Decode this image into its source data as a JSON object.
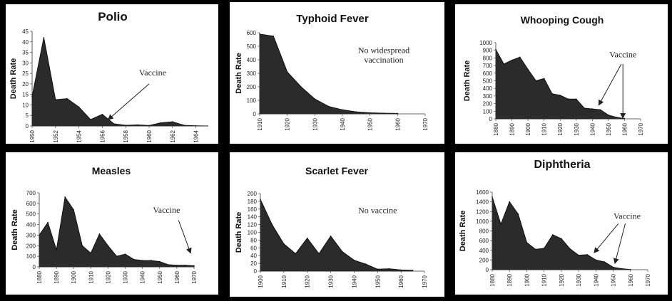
{
  "chart_data": [
    {
      "type": "area",
      "title": "Polio",
      "ylabel": "Death Rate",
      "xlabel": "",
      "xlim": [
        1950,
        1965
      ],
      "ylim": [
        0,
        45
      ],
      "xticks": [
        1950,
        1952,
        1954,
        1956,
        1958,
        1960,
        1962,
        1964
      ],
      "yticks": [
        0,
        5,
        10,
        15,
        20,
        25,
        30,
        35,
        40,
        45
      ],
      "x": [
        1950,
        1951,
        1952,
        1953,
        1954,
        1955,
        1956,
        1957,
        1958,
        1959,
        1960,
        1961,
        1962,
        1963,
        1964,
        1965
      ],
      "values": [
        14,
        42,
        12.5,
        13,
        9,
        3,
        5.5,
        1,
        0.3,
        0.5,
        0.2,
        1.5,
        2,
        0.3,
        0.1,
        0
      ],
      "annotations": [
        {
          "text": "Vaccine",
          "text_x": 1960.3,
          "text_y": 24,
          "arrows": [
            {
              "from": [
                1960,
                20
              ],
              "to": [
                1956.5,
                3
              ]
            }
          ]
        }
      ]
    },
    {
      "type": "area",
      "title": "Typhoid Fever",
      "ylabel": "Death Rate",
      "xlabel": "",
      "xlim": [
        1910,
        1970
      ],
      "ylim": [
        0,
        600
      ],
      "xticks": [
        1910,
        1920,
        1930,
        1940,
        1950,
        1960,
        1970
      ],
      "yticks": [
        0,
        100,
        200,
        300,
        400,
        500,
        600
      ],
      "x": [
        1910,
        1915,
        1920,
        1925,
        1930,
        1935,
        1940,
        1945,
        1950,
        1955,
        1960
      ],
      "values": [
        590,
        575,
        310,
        200,
        110,
        55,
        30,
        15,
        8,
        5,
        3
      ],
      "annotations": [
        {
          "text": "No widespread",
          "text_x": 1955,
          "text_y": 450,
          "arrows": []
        },
        {
          "text": "vaccination",
          "text_x": 1955,
          "text_y": 380,
          "arrows": []
        }
      ]
    },
    {
      "type": "area",
      "title": "Whooping Cough",
      "ylabel": "Death Rate",
      "xlabel": "",
      "xlim": [
        1880,
        1970
      ],
      "ylim": [
        0,
        1000
      ],
      "xticks": [
        1880,
        1890,
        1900,
        1910,
        1920,
        1930,
        1940,
        1950,
        1960,
        1970
      ],
      "yticks": [
        0,
        100,
        200,
        300,
        400,
        500,
        600,
        700,
        800,
        900,
        1000
      ],
      "x": [
        1880,
        1885,
        1890,
        1895,
        1900,
        1905,
        1910,
        1915,
        1920,
        1925,
        1930,
        1935,
        1940,
        1945,
        1950,
        1955,
        1960
      ],
      "values": [
        910,
        720,
        770,
        810,
        650,
        500,
        530,
        330,
        310,
        260,
        260,
        140,
        130,
        120,
        50,
        20,
        5
      ],
      "annotations": [
        {
          "text": "Vaccine",
          "text_x": 1959,
          "text_y": 810,
          "arrows": [
            {
              "from": [
                1958,
                720
              ],
              "to": [
                1944,
                180
              ]
            },
            {
              "from": [
                1959,
                720
              ],
              "to": [
                1959,
                10
              ]
            }
          ]
        }
      ]
    },
    {
      "type": "area",
      "title": "Measles",
      "ylabel": "Death Rate",
      "xlabel": "",
      "xlim": [
        1880,
        1970
      ],
      "ylim": [
        0,
        700
      ],
      "xticks": [
        1880,
        1890,
        1900,
        1910,
        1920,
        1930,
        1940,
        1950,
        1960,
        1970
      ],
      "yticks": [
        0,
        100,
        200,
        300,
        400,
        500,
        600,
        700
      ],
      "x": [
        1880,
        1885,
        1890,
        1895,
        1900,
        1905,
        1910,
        1915,
        1920,
        1925,
        1930,
        1935,
        1940,
        1945,
        1950,
        1955,
        1960,
        1965,
        1970
      ],
      "values": [
        300,
        420,
        160,
        660,
        540,
        200,
        130,
        310,
        200,
        100,
        120,
        70,
        60,
        60,
        50,
        20,
        15,
        15,
        10
      ],
      "annotations": [
        {
          "text": "Vaccine",
          "text_x": 1954,
          "text_y": 510,
          "arrows": [
            {
              "from": [
                1961,
                440
              ],
              "to": [
                1968,
                130
              ]
            }
          ]
        }
      ]
    },
    {
      "type": "area",
      "title": "Scarlet Fever",
      "ylabel": "Death Rate",
      "xlabel": "",
      "xlim": [
        1900,
        1970
      ],
      "ylim": [
        0,
        200
      ],
      "xticks": [
        1900,
        1910,
        1920,
        1930,
        1940,
        1950,
        1960,
        1970
      ],
      "yticks": [
        0,
        20,
        40,
        60,
        80,
        100,
        120,
        140,
        160,
        180,
        200
      ],
      "x": [
        1900,
        1905,
        1910,
        1915,
        1920,
        1925,
        1930,
        1935,
        1940,
        1945,
        1950,
        1955,
        1960,
        1965
      ],
      "values": [
        185,
        120,
        70,
        45,
        85,
        45,
        90,
        50,
        28,
        18,
        5,
        6,
        3,
        2
      ],
      "annotations": [
        {
          "text": "No vaccine",
          "text_x": 1950,
          "text_y": 150,
          "arrows": []
        }
      ]
    },
    {
      "type": "area",
      "title": "Diphtheria",
      "ylabel": "Death Rate",
      "xlabel": "",
      "xlim": [
        1880,
        1970
      ],
      "ylim": [
        0,
        1600
      ],
      "xticks": [
        1880,
        1890,
        1900,
        1910,
        1920,
        1930,
        1940,
        1950,
        1960,
        1970
      ],
      "yticks": [
        0,
        200,
        400,
        600,
        800,
        1000,
        1200,
        1400,
        1600
      ],
      "x": [
        1880,
        1885,
        1890,
        1895,
        1900,
        1905,
        1910,
        1915,
        1920,
        1925,
        1930,
        1935,
        1940,
        1945,
        1950,
        1955,
        1960
      ],
      "values": [
        1500,
        940,
        1400,
        1150,
        560,
        420,
        440,
        720,
        640,
        430,
        300,
        310,
        200,
        160,
        50,
        20,
        5
      ],
      "annotations": [
        {
          "text": "Vaccine",
          "text_x": 1958,
          "text_y": 1050,
          "arrows": [
            {
              "from": [
                1953,
                950
              ],
              "to": [
                1939,
                350
              ]
            },
            {
              "from": [
                1957,
                950
              ],
              "to": [
                1951,
                130
              ]
            }
          ]
        }
      ]
    }
  ]
}
